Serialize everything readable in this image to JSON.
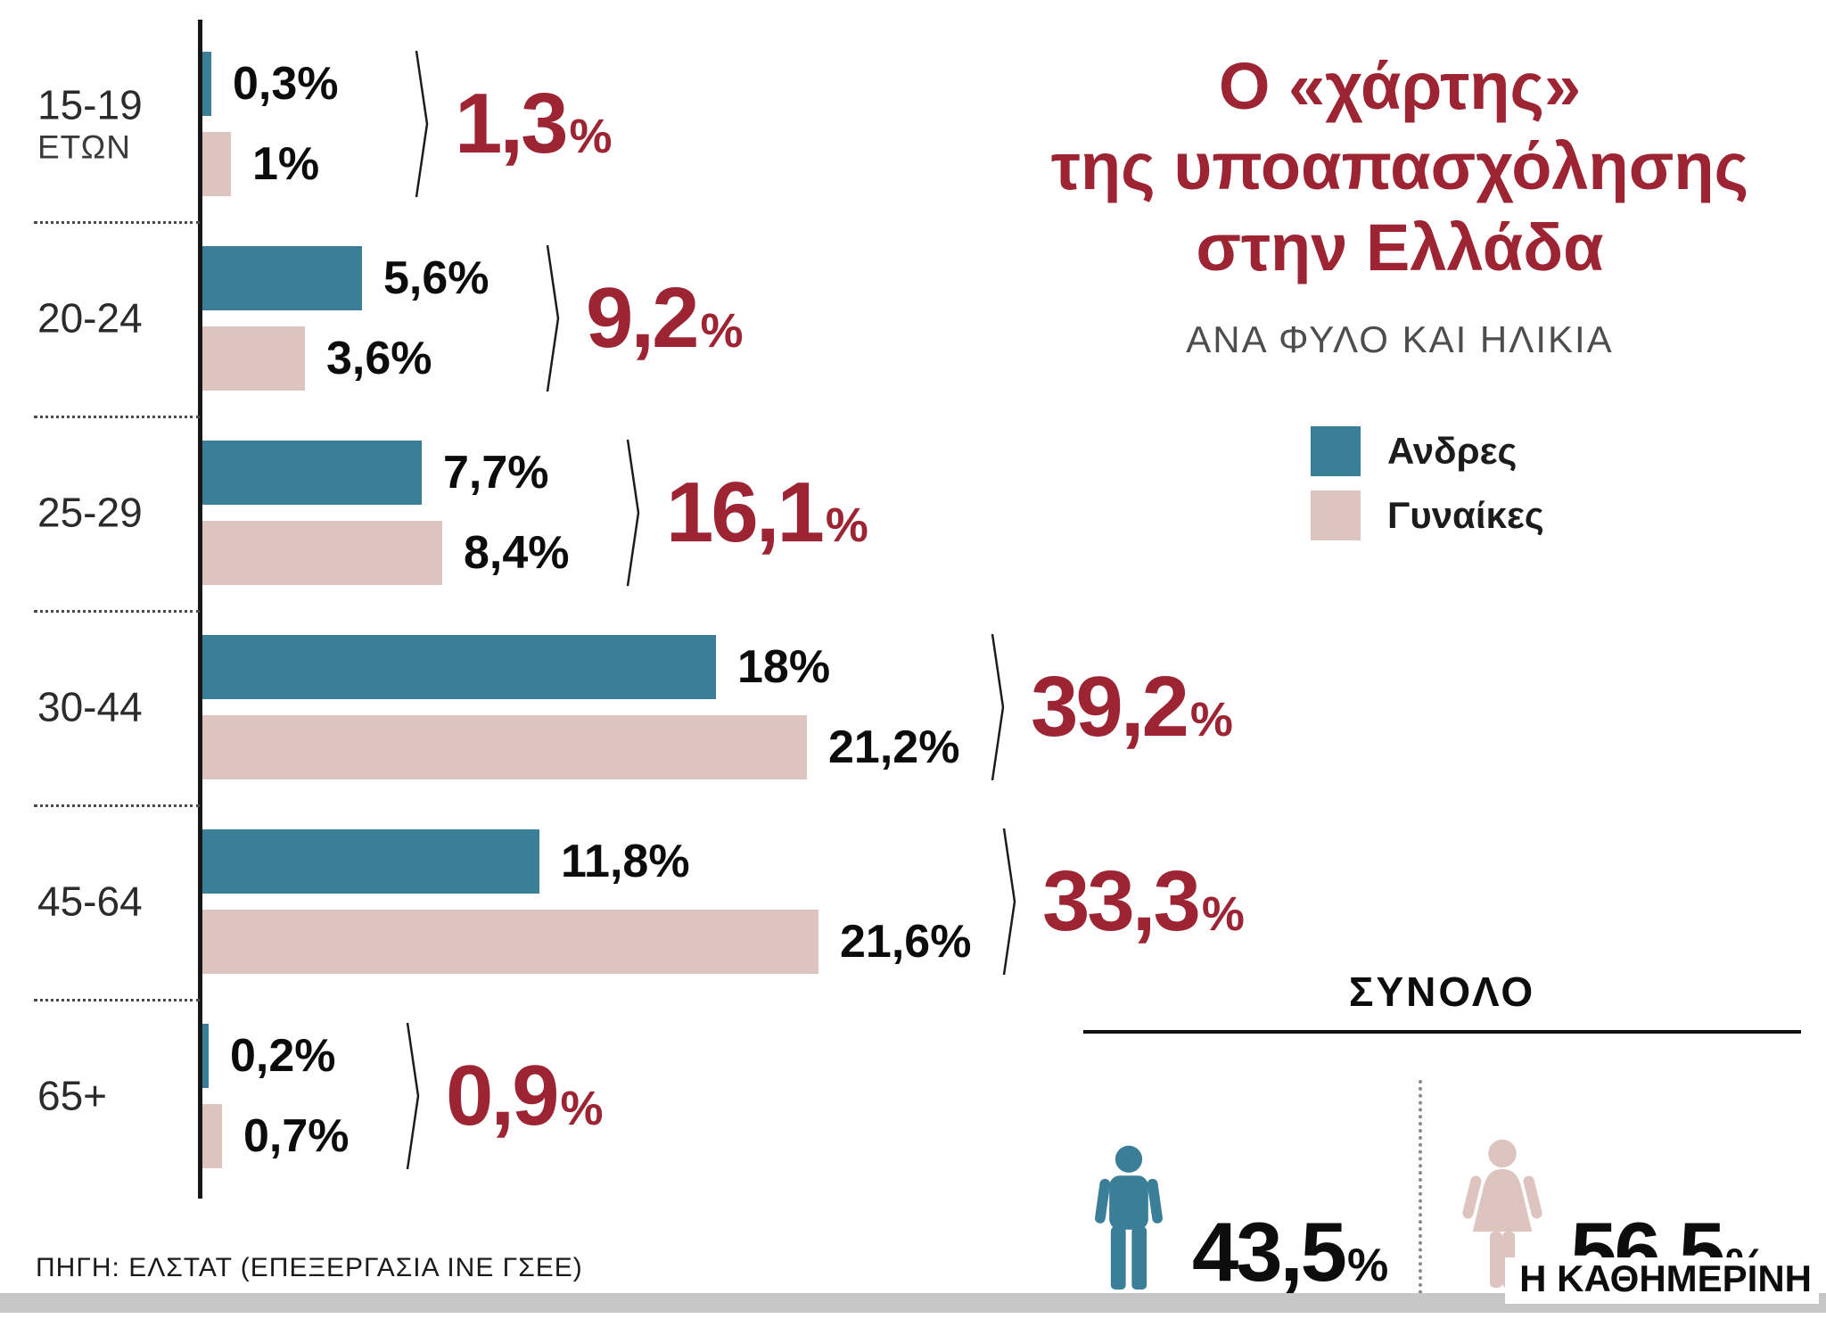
{
  "title": {
    "lines": [
      "Ο «χάρτης»",
      "της υποαπασχόλησης",
      "στην Ελλάδα"
    ],
    "subtitle": "ΑΝΑ ΦΥΛΟ ΚΑΙ ΗΛΙΚΙΑ"
  },
  "legend": {
    "men_label": "Ανδρες",
    "women_label": "Γυναίκες"
  },
  "colors": {
    "men": "#3a7e97",
    "women": "#ddc4bf",
    "accent": "#9c2433"
  },
  "chart_data": {
    "type": "bar",
    "orientation": "horizontal",
    "unit": "%",
    "title": "Ο «χάρτης» της υποαπασχόλησης στην Ελλάδα",
    "subtitle": "ΑΝΑ ΦΥΛΟ ΚΑΙ ΗΛΙΚΙΑ",
    "categories": [
      "15-19 ΕΤΩΝ",
      "20-24",
      "25-29",
      "30-44",
      "45-64",
      "65+"
    ],
    "series": [
      {
        "name": "Ανδρες",
        "values": [
          0.3,
          5.6,
          7.7,
          18,
          11.8,
          0.2
        ]
      },
      {
        "name": "Γυναίκες",
        "values": [
          1,
          3.6,
          8.4,
          21.2,
          21.6,
          0.7
        ]
      }
    ],
    "totals": [
      1.3,
      9.2,
      16.1,
      39.2,
      33.3,
      0.9
    ],
    "xlim": [
      0,
      22
    ],
    "grid": false,
    "legend_position": "right"
  },
  "rows": [
    {
      "label": "15-19",
      "label2": "ΕΤΩΝ",
      "men_text": "0,3%",
      "women_text": "1%",
      "total_text": "1,3"
    },
    {
      "label": "20-24",
      "label2": "",
      "men_text": "5,6%",
      "women_text": "3,6%",
      "total_text": "9,2"
    },
    {
      "label": "25-29",
      "label2": "",
      "men_text": "7,7%",
      "women_text": "8,4%",
      "total_text": "16,1"
    },
    {
      "label": "30-44",
      "label2": "",
      "men_text": "18%",
      "women_text": "21,2%",
      "total_text": "39,2"
    },
    {
      "label": "45-64",
      "label2": "",
      "men_text": "11,8%",
      "women_text": "21,6%",
      "total_text": "33,3"
    },
    {
      "label": "65+",
      "label2": "",
      "men_text": "0,2%",
      "women_text": "0,7%",
      "total_text": "0,9"
    }
  ],
  "summary": {
    "heading": "ΣΥΝΟΛΟ",
    "men_value": "43,5",
    "men_pct": "%",
    "women_value": "56,5",
    "women_pct": "%"
  },
  "footer": {
    "source": "ΠΗΓΗ: ΕΛΣΤΑΤ (ΕΠΕΞΕΡΓΑΣΙΑ ΙΝΕ ΓΣΕΕ)",
    "brand": "Η ΚΑΘΗΜΕΡΙΝΗ"
  }
}
